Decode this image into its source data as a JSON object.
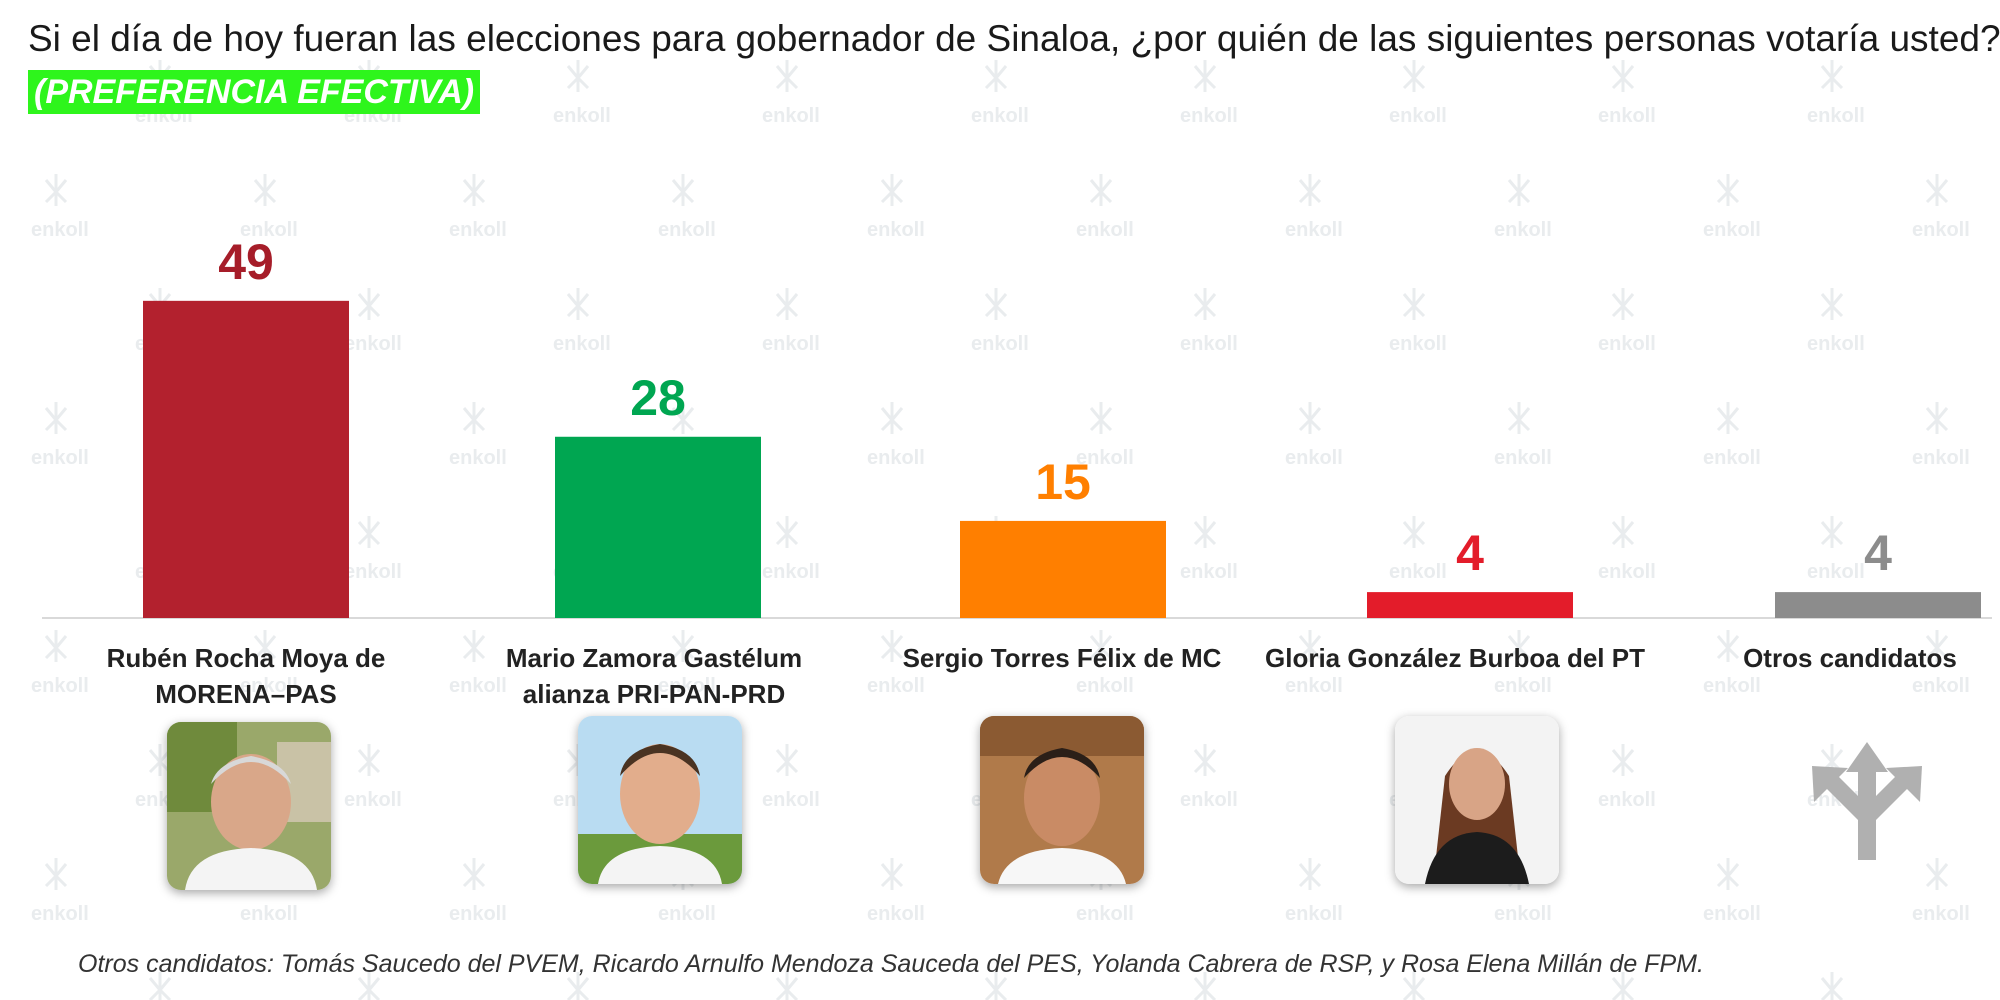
{
  "header": {
    "question": "Si el día de hoy fueran las elecciones para gobernador de Sinaloa, ¿por quién de las siguientes personas votaría usted?",
    "qualifier": "(PREFERENCIA EFECTIVA)"
  },
  "watermark": {
    "text": "enkoll"
  },
  "chart_data": {
    "type": "bar",
    "categories": [
      "Rubén Rocha Moya de MORENA–PAS",
      "Mario Zamora Gastélum alianza PRI-PAN-PRD",
      "Sergio Torres Félix de MC",
      "Gloria González Burboa del PT",
      "Otros candidatos"
    ],
    "values": [
      49,
      28,
      15,
      4,
      4
    ],
    "value_labels": [
      "49",
      "28",
      "15",
      "4",
      "4"
    ],
    "colors": [
      "#b3212e",
      "#00a651",
      "#ff7f00",
      "#e31c2a",
      "#8c8c8c"
    ],
    "label_colors": [
      "#a61d29",
      "#00a651",
      "#ff7f00",
      "#e31c2a",
      "#8c8c8c"
    ],
    "ylim": [
      0,
      55
    ],
    "grid": false,
    "legend": "none"
  },
  "candidates": [
    {
      "label_line1": "Rubén Rocha Moya de",
      "label_line2": "MORENA–PAS",
      "photo": "candidate-photo"
    },
    {
      "label_line1": "Mario Zamora Gastélum",
      "label_line2": "alianza PRI-PAN-PRD",
      "photo": "candidate-photo"
    },
    {
      "label_line1": "Sergio Torres Félix de MC",
      "label_line2": "",
      "photo": "candidate-photo"
    },
    {
      "label_line1": "Gloria González Burboa del PT",
      "label_line2": "",
      "photo": "candidate-photo"
    },
    {
      "label_line1": "Otros candidatos",
      "label_line2": "",
      "photo": "split-arrows-icon"
    }
  ],
  "footnote": "Otros candidatos: Tomás Saucedo del PVEM, Ricardo Arnulfo Mendoza Sauceda del PES, Yolanda Cabrera de RSP, y Rosa Elena Millán de FPM."
}
